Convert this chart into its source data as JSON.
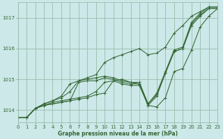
{
  "bg_color": "#cce8e8",
  "grid_color": "#99bbaa",
  "line_color": "#336633",
  "xlabel": "Graphe pression niveau de la mer (hPa)",
  "xlabel_color": "#336633",
  "ylim": [
    1013.6,
    1017.5
  ],
  "xlim": [
    0,
    23
  ],
  "yticks": [
    1014,
    1015,
    1016,
    1017
  ],
  "xticks": [
    0,
    1,
    2,
    3,
    4,
    5,
    6,
    7,
    8,
    9,
    10,
    11,
    12,
    13,
    14,
    15,
    16,
    17,
    18,
    19,
    20,
    21,
    22,
    23
  ],
  "series": [
    {
      "x": [
        0,
        1,
        2,
        3,
        4,
        5,
        6,
        7,
        8,
        9,
        10,
        11,
        12,
        13,
        14,
        15,
        16,
        17,
        18,
        19,
        20,
        21,
        22,
        23
      ],
      "y": [
        1013.75,
        1013.75,
        1014.05,
        1014.15,
        1014.2,
        1014.25,
        1014.3,
        1014.35,
        1014.4,
        1014.5,
        1014.55,
        1014.95,
        1014.85,
        1014.8,
        1014.8,
        1014.15,
        1014.1,
        1014.4,
        1015.25,
        1015.35,
        1015.95,
        1016.7,
        1017.05,
        1017.3
      ]
    },
    {
      "x": [
        0,
        1,
        2,
        3,
        4,
        5,
        6,
        7,
        8,
        9,
        10,
        11,
        12,
        13,
        14,
        15,
        16,
        17,
        18,
        19,
        20,
        21,
        22,
        23
      ],
      "y": [
        1013.75,
        1013.75,
        1014.05,
        1014.15,
        1014.2,
        1014.25,
        1014.3,
        1014.9,
        1014.95,
        1014.95,
        1015.05,
        1015.0,
        1014.9,
        1014.85,
        1014.85,
        1014.15,
        1014.45,
        1015.2,
        1015.9,
        1016.0,
        1016.75,
        1017.05,
        1017.3,
        1017.3
      ]
    },
    {
      "x": [
        0,
        1,
        2,
        3,
        4,
        5,
        6,
        7,
        8,
        9,
        10,
        11,
        12,
        13,
        14,
        15,
        16,
        17,
        18,
        19,
        20,
        21,
        22,
        23
      ],
      "y": [
        1013.75,
        1013.75,
        1014.05,
        1014.15,
        1014.25,
        1014.3,
        1014.35,
        1014.4,
        1014.45,
        1014.6,
        1014.9,
        1014.95,
        1015.0,
        1014.9,
        1014.85,
        1014.2,
        1014.5,
        1015.2,
        1015.9,
        1016.0,
        1016.8,
        1017.1,
        1017.3,
        1017.3
      ]
    },
    {
      "x": [
        0,
        1,
        2,
        3,
        4,
        5,
        6,
        7,
        8,
        9,
        10,
        11,
        12,
        13,
        14,
        15,
        16,
        17,
        18,
        19,
        20,
        21,
        22,
        23
      ],
      "y": [
        1013.75,
        1013.75,
        1014.05,
        1014.2,
        1014.3,
        1014.45,
        1014.85,
        1014.95,
        1015.0,
        1015.05,
        1015.1,
        1015.05,
        1014.95,
        1014.9,
        1014.9,
        1014.2,
        1014.55,
        1015.25,
        1015.95,
        1016.05,
        1016.85,
        1017.15,
        1017.35,
        1017.35
      ]
    },
    {
      "x": [
        0,
        1,
        2,
        3,
        4,
        5,
        6,
        7,
        8,
        9,
        10,
        11,
        12,
        13,
        14,
        15,
        16,
        17,
        18,
        19,
        20,
        21,
        22,
        23
      ],
      "y": [
        1013.75,
        1013.75,
        1014.05,
        1014.2,
        1014.3,
        1014.4,
        1014.6,
        1014.95,
        1015.05,
        1015.15,
        1015.55,
        1015.7,
        1015.8,
        1015.9,
        1016.0,
        1015.8,
        1015.85,
        1016.05,
        1016.5,
        1016.75,
        1017.05,
        1017.2,
        1017.35,
        1017.35
      ]
    }
  ]
}
